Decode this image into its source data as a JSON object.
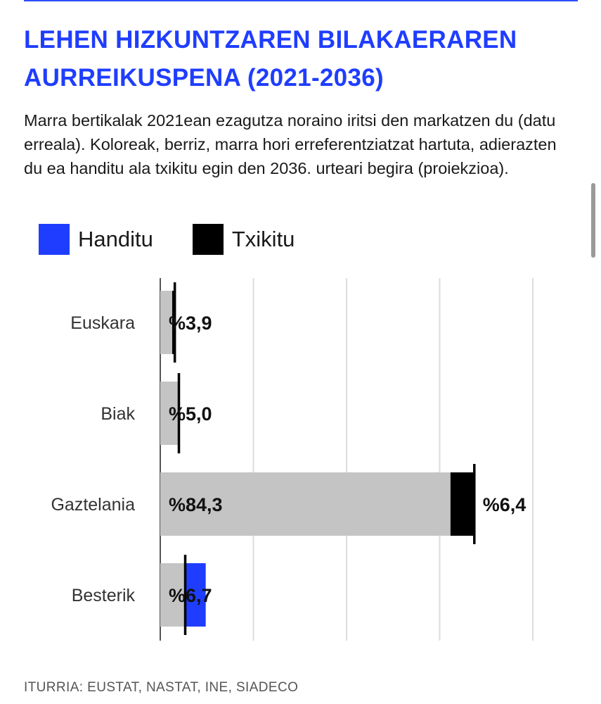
{
  "header": {
    "title": "LEHEN HIZKUNTZAREN BILAKAERAREN AURREIKUSPENA (2021-2036)",
    "subtitle": "Marra bertikalak 2021ean ezagutza noraino iritsi den markatzen du (datu erreala). Koloreak, berriz, marra hori erreferentziatzat hartuta, adierazten du ea handitu ala txikitu egin den 2036. urteari begira (proiekzioa)."
  },
  "legend": {
    "items": [
      {
        "label": "Handitu",
        "color": "#1f3dff"
      },
      {
        "label": "Txikitu",
        "color": "#000000"
      }
    ]
  },
  "colors": {
    "base_bar": "#c4c4c4",
    "increase": "#1f3dff",
    "decrease": "#000000",
    "marker": "#000000",
    "grid": "#dddddd"
  },
  "chart_data": {
    "type": "bar",
    "orientation": "horizontal",
    "title": "LEHEN HIZKUNTZAREN BILAKAERAREN AURREIKUSPENA (2021-2036)",
    "categories": [
      "Euskara",
      "Biak",
      "Gaztelania",
      "Besterik"
    ],
    "series": [
      {
        "name": "2021",
        "values": [
          3.9,
          5.0,
          84.3,
          6.7
        ]
      },
      {
        "name": "Handitu",
        "values": [
          0,
          0,
          0,
          5.5
        ]
      },
      {
        "name": "Txikitu",
        "values": [
          0.7,
          0.2,
          6.4,
          0
        ]
      }
    ],
    "value_labels": [
      "%3,9",
      "%5,0",
      "%84,3",
      "%6,7"
    ],
    "change_labels": [
      "",
      "",
      "%6,4",
      ""
    ],
    "xlim": [
      0,
      100
    ],
    "grid": true,
    "legend": "top-left"
  },
  "footer": {
    "source": "ITURRIA: EUSTAT, NASTAT, INE, SIADECO"
  }
}
